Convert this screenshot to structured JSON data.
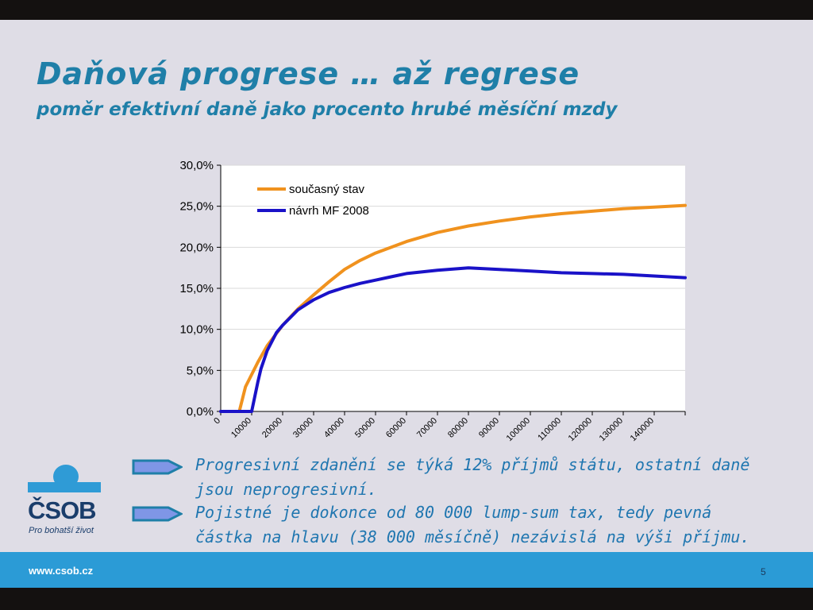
{
  "slide": {
    "title": "Daňová progrese … až regrese",
    "subtitle": "poměr efektivní daně jako procento hrubé měsíční mzdy",
    "bullets": [
      {
        "line1": "Progresivní zdanění se týká 12% příjmů státu, ostatní daně",
        "line2": "jsou neprogresivní."
      },
      {
        "line1": "Pojistné je dokonce od 80 000 lump-sum tax, tedy pevná",
        "line2": "částka na hlavu (38 000 měsíčně) nezávislá na výši příjmu."
      }
    ],
    "logo_text": "ČSOB",
    "logo_slogan": "Pro bohatší život",
    "footer_url": "www.csob.cz",
    "page_number": "5"
  },
  "colors": {
    "title": "#1f7fa8",
    "series_current": "#f0921e",
    "series_proposal": "#1a12c8",
    "footer": "#2b9bd6",
    "logo_blue": "#2f9bd6",
    "logo_dark": "#1a3d6b",
    "arrow_fill": "#7f96e6",
    "arrow_border": "#1f7fa8"
  },
  "icons": [
    "arrow-right-icon",
    "csob-logo"
  ],
  "chart_data": {
    "type": "line",
    "title": "",
    "xlabel": "",
    "ylabel": "",
    "xlim": [
      0,
      150000
    ],
    "ylim": [
      0,
      30
    ],
    "grid": true,
    "legend_position": "top-left",
    "x_ticks": [
      "0",
      "10000",
      "20000",
      "30000",
      "40000",
      "50000",
      "60000",
      "70000",
      "80000",
      "90000",
      "100000",
      "110000",
      "120000",
      "130000",
      "140000"
    ],
    "y_ticks": [
      "0,0%",
      "5,0%",
      "10,0%",
      "15,0%",
      "20,0%",
      "25,0%",
      "30,0%"
    ],
    "series": [
      {
        "name": "současný stav",
        "x": [
          0,
          6000,
          7000,
          8000,
          10000,
          12000,
          15000,
          18000,
          20000,
          25000,
          30000,
          35000,
          40000,
          45000,
          50000,
          60000,
          70000,
          80000,
          90000,
          100000,
          110000,
          120000,
          130000,
          140000,
          150000
        ],
        "y": [
          0,
          0,
          1.5,
          3.0,
          4.5,
          6.0,
          8.0,
          9.5,
          10.5,
          12.5,
          14.2,
          15.8,
          17.3,
          18.4,
          19.3,
          20.7,
          21.8,
          22.6,
          23.2,
          23.7,
          24.1,
          24.4,
          24.7,
          24.9,
          25.1
        ]
      },
      {
        "name": "návrh MF 2008",
        "x": [
          0,
          10000,
          11000,
          12000,
          13000,
          15000,
          18000,
          20000,
          25000,
          30000,
          35000,
          40000,
          45000,
          50000,
          55000,
          60000,
          70000,
          80000,
          90000,
          100000,
          110000,
          120000,
          130000,
          140000,
          150000
        ],
        "y": [
          0,
          0,
          1.8,
          3.6,
          5.2,
          7.4,
          9.6,
          10.5,
          12.4,
          13.6,
          14.5,
          15.1,
          15.6,
          16.0,
          16.4,
          16.8,
          17.2,
          17.5,
          17.3,
          17.1,
          16.9,
          16.8,
          16.7,
          16.5,
          16.3
        ]
      }
    ]
  }
}
